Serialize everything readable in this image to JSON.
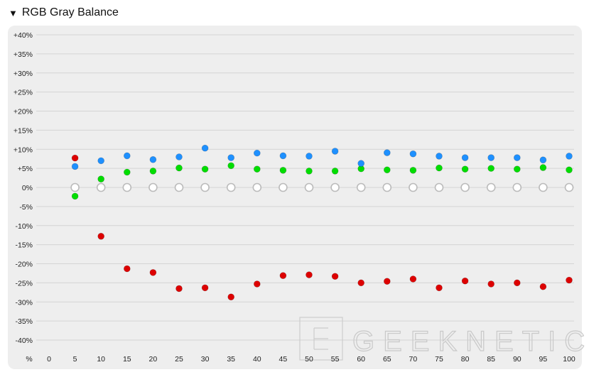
{
  "header": {
    "title": "RGB Gray Balance",
    "toggle_icon": "triangle-down-icon"
  },
  "watermark": "GEEKNETIC",
  "chart_data": {
    "type": "scatter",
    "title": "RGB Gray Balance",
    "x_unit_label": "%",
    "categories": [
      0,
      5,
      10,
      15,
      20,
      25,
      30,
      35,
      40,
      45,
      50,
      55,
      60,
      65,
      70,
      75,
      80,
      85,
      90,
      95,
      100
    ],
    "ylim": [
      -40,
      40
    ],
    "yticks": [
      "+40%",
      "+35%",
      "+30%",
      "+25%",
      "+20%",
      "+15%",
      "+10%",
      "+5%",
      "0%",
      "-5%",
      "-10%",
      "-15%",
      "-20%",
      "-25%",
      "-30%",
      "-35%",
      "-40%"
    ],
    "ytick_values": [
      40,
      35,
      30,
      25,
      20,
      15,
      10,
      5,
      0,
      -5,
      -10,
      -15,
      -20,
      -25,
      -30,
      -35,
      -40
    ],
    "grid": true,
    "series": [
      {
        "name": "",
        "color": "#dd0000",
        "x": [
          5,
          10,
          15,
          20,
          25,
          30,
          35,
          40,
          45,
          50,
          55,
          60,
          65,
          70,
          75,
          80,
          85,
          90,
          95,
          100
        ],
        "values": [
          7.7,
          -12.8,
          -21.3,
          -22.3,
          -26.5,
          -26.3,
          -28.7,
          -25.3,
          -23.1,
          -22.9,
          -23.3,
          -25.0,
          -24.6,
          -24.0,
          -26.3,
          -24.5,
          -25.3,
          -25.0,
          -26.0,
          -24.3
        ]
      },
      {
        "name": "",
        "color": "#00dd00",
        "x": [
          5,
          10,
          15,
          20,
          25,
          30,
          35,
          40,
          45,
          50,
          55,
          60,
          65,
          70,
          75,
          80,
          85,
          90,
          95,
          100
        ],
        "values": [
          -2.3,
          2.2,
          4.0,
          4.3,
          5.1,
          4.8,
          5.7,
          4.8,
          4.5,
          4.3,
          4.3,
          4.9,
          4.6,
          4.5,
          5.1,
          4.8,
          5.0,
          4.8,
          5.2,
          4.6
        ]
      },
      {
        "name": "",
        "color": "#1e90ff",
        "x": [
          5,
          10,
          15,
          20,
          25,
          30,
          35,
          40,
          45,
          50,
          55,
          60,
          65,
          70,
          75,
          80,
          85,
          90,
          95,
          100
        ],
        "values": [
          5.5,
          7.0,
          8.3,
          7.3,
          8.0,
          10.3,
          7.8,
          9.0,
          8.3,
          8.2,
          9.5,
          6.3,
          9.1,
          8.8,
          8.2,
          7.8,
          7.8,
          7.8,
          7.2,
          8.2
        ]
      },
      {
        "name": "",
        "color": "#bbbbbb",
        "hollow": true,
        "x": [
          5,
          10,
          15,
          20,
          25,
          30,
          35,
          40,
          45,
          50,
          55,
          60,
          65,
          70,
          75,
          80,
          85,
          90,
          95,
          100
        ],
        "values": [
          0,
          0,
          0,
          0,
          0,
          0,
          0,
          0,
          0,
          0,
          0,
          0,
          0,
          0,
          0,
          0,
          0,
          0,
          0,
          0
        ]
      }
    ]
  }
}
